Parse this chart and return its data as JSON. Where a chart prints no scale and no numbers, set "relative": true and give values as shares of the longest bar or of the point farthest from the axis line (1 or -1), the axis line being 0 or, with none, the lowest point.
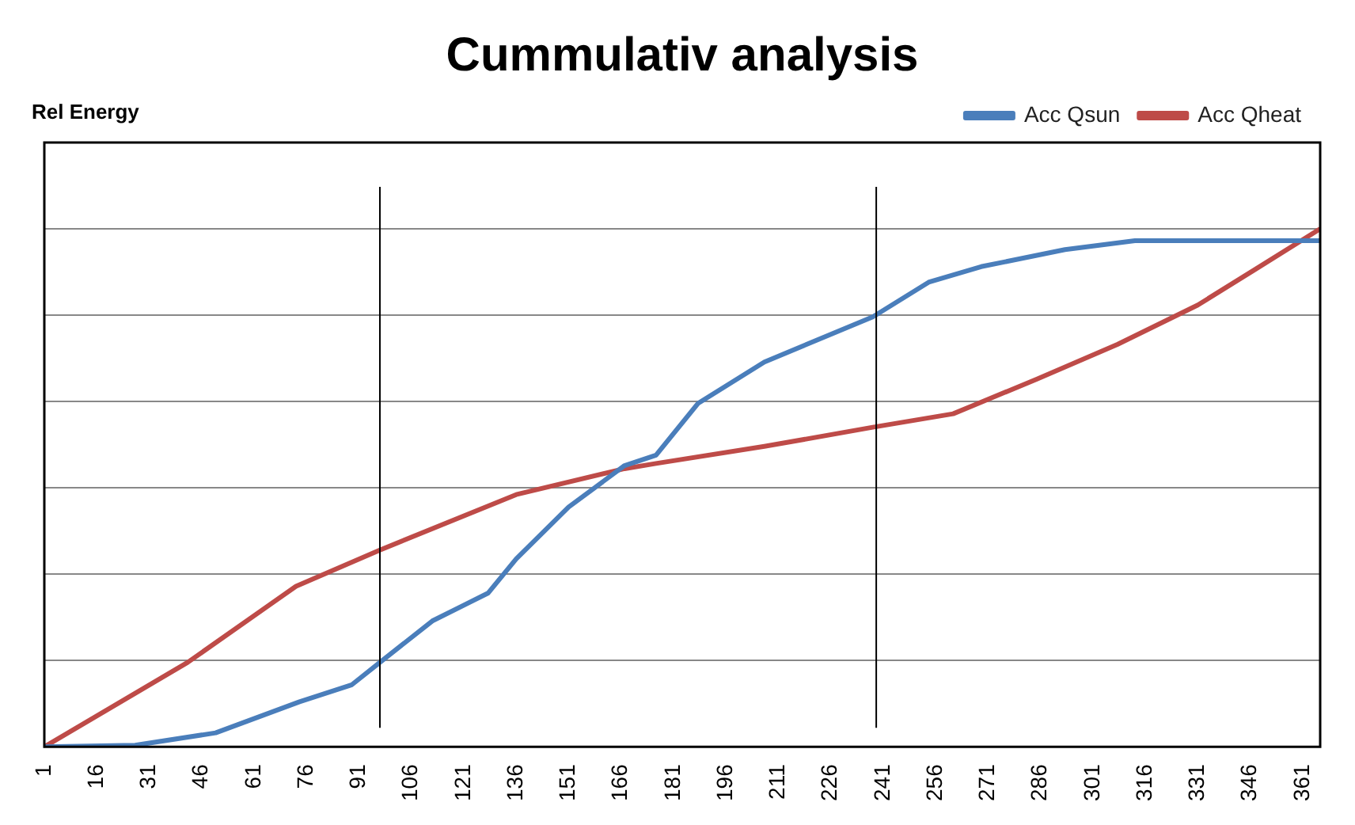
{
  "chart_data": {
    "type": "line",
    "title": "Cummulativ analysis",
    "annotations": [
      "Rel Energy"
    ],
    "relative": true,
    "xlim": [
      1,
      366
    ],
    "xticks": [
      1,
      16,
      31,
      46,
      61,
      76,
      91,
      106,
      121,
      136,
      151,
      166,
      181,
      196,
      211,
      226,
      241,
      256,
      271,
      286,
      301,
      316,
      331,
      346,
      361
    ],
    "grid": "y",
    "legend": "top right",
    "marker": "none",
    "line_style": "solid",
    "ref_lines": [
      {
        "axis": "x",
        "value": 97,
        "color": "#000000"
      },
      {
        "axis": "x",
        "value": 239,
        "color": "#000000"
      }
    ],
    "series": [
      {
        "name": "Acc Qsun",
        "color": "#4a7ebb",
        "x": [
          1,
          27,
          50,
          74,
          89,
          97,
          112,
          128,
          136,
          151,
          167,
          176,
          188,
          207,
          238,
          254,
          269,
          293,
          313,
          366
        ],
        "values": [
          0,
          0.003,
          0.027,
          0.087,
          0.12,
          0.163,
          0.243,
          0.297,
          0.363,
          0.463,
          0.543,
          0.563,
          0.663,
          0.743,
          0.83,
          0.897,
          0.927,
          0.96,
          0.977,
          0.977
        ]
      },
      {
        "name": "Acc Qheat",
        "color": "#be4b48",
        "x": [
          1,
          42,
          73,
          97,
          136,
          167,
          176,
          207,
          238,
          261,
          285,
          308,
          331,
          347,
          366
        ],
        "values": [
          0,
          0.163,
          0.31,
          0.38,
          0.487,
          0.537,
          0.547,
          0.58,
          0.617,
          0.643,
          0.71,
          0.777,
          0.853,
          0.92,
          1.0
        ]
      }
    ]
  }
}
